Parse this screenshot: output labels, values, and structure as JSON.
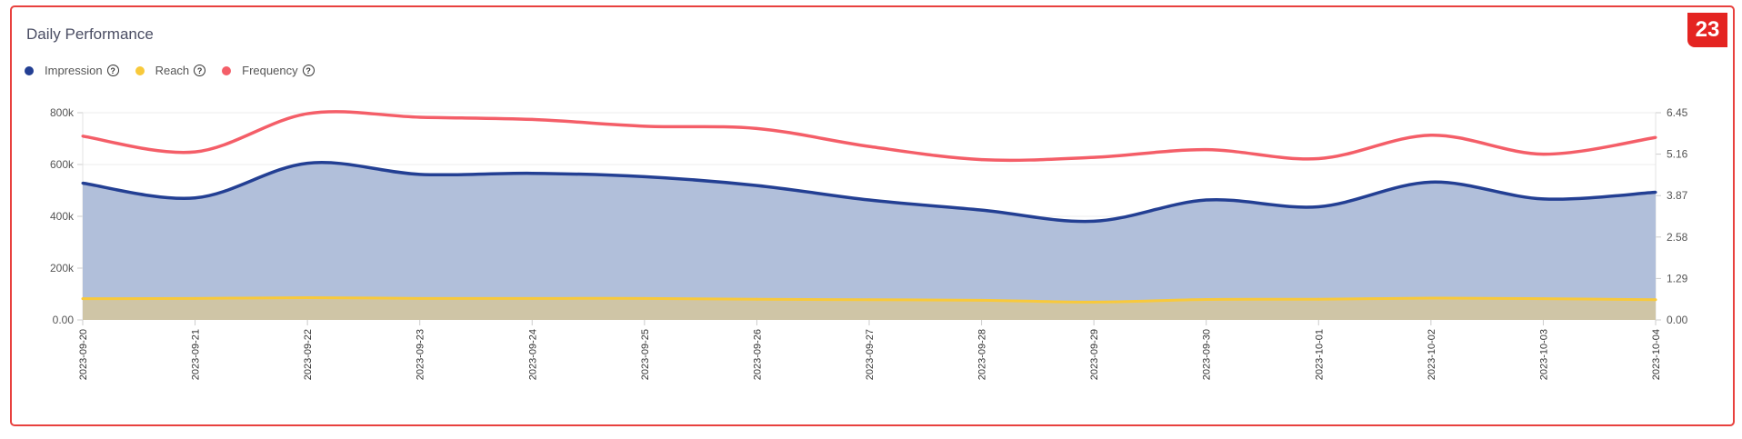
{
  "badge": "23",
  "title": "Daily Performance",
  "legend": [
    {
      "label": "Impression",
      "color": "#233f93",
      "icon": "help-circle-icon"
    },
    {
      "label": "Reach",
      "color": "#f8c93b",
      "icon": "help-circle-icon"
    },
    {
      "label": "Frequency",
      "color": "#f45e68",
      "icon": "help-circle-icon"
    }
  ],
  "help_glyph": "?",
  "chart_data": {
    "type": "area",
    "title": "Daily Performance",
    "x": [
      "2023-09-20",
      "2023-09-21",
      "2023-09-22",
      "2023-09-23",
      "2023-09-24",
      "2023-09-25",
      "2023-09-26",
      "2023-09-27",
      "2023-09-28",
      "2023-09-29",
      "2023-09-30",
      "2023-10-01",
      "2023-10-02",
      "2023-10-03",
      "2023-10-04"
    ],
    "left_axis": {
      "ylim": [
        0,
        800000
      ],
      "ticks": [
        "0.00",
        "200k",
        "400k",
        "600k",
        "800k"
      ]
    },
    "right_axis": {
      "ylim": [
        0,
        6.45
      ],
      "ticks": [
        "0.00",
        "1.29",
        "2.58",
        "3.87",
        "5.16",
        "6.45"
      ]
    },
    "grid": true,
    "legend_position": "top-left",
    "series": [
      {
        "name": "Impression",
        "axis": "left",
        "type": "area",
        "color": "#233f93",
        "fill": "#b1bfda",
        "values": [
          528000,
          471000,
          605000,
          562000,
          566000,
          553000,
          519000,
          463000,
          424000,
          381000,
          463000,
          437000,
          532000,
          467000,
          493000
        ]
      },
      {
        "name": "Reach",
        "axis": "left",
        "type": "area",
        "color": "#f8c93b",
        "fill": "#cfc5a6",
        "values": [
          82000,
          83000,
          86000,
          83000,
          83000,
          83000,
          80000,
          78000,
          76000,
          69000,
          79000,
          80000,
          84000,
          82000,
          78000
        ]
      },
      {
        "name": "Frequency",
        "axis": "right",
        "type": "line",
        "color": "#f45e68",
        "values": [
          5.72,
          5.23,
          6.42,
          6.31,
          6.24,
          6.03,
          5.96,
          5.4,
          4.99,
          5.06,
          5.3,
          5.02,
          5.75,
          5.16,
          5.68
        ]
      }
    ]
  }
}
